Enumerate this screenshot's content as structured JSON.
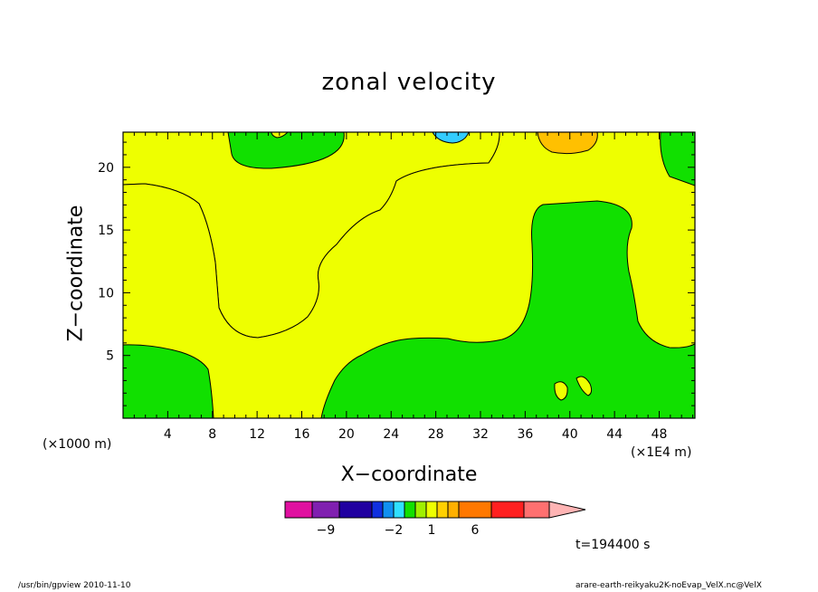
{
  "chart_data": {
    "type": "heatmap",
    "title": "zonal velocity",
    "xlabel": "X−coordinate",
    "ylabel": "Z−coordinate",
    "x_unit_left": "(×1000 m)",
    "x_unit_right": "(×1E4 m)",
    "xlim": [
      0,
      51.2
    ],
    "ylim": [
      0,
      22.8
    ],
    "x_ticks": [
      4,
      8,
      12,
      16,
      20,
      24,
      28,
      32,
      36,
      40,
      44,
      48
    ],
    "y_ticks": [
      5,
      10,
      15,
      20
    ],
    "fill_colors": {
      "green": "#11e000",
      "yellow": "#eeff00",
      "orange": "#ffc000",
      "cyan": "#33ccff"
    },
    "colorbar": {
      "colors": [
        "#e010a0",
        "#8020b0",
        "#2000a0",
        "#1030e0",
        "#1090f0",
        "#30e0ff",
        "#11e000",
        "#a0f000",
        "#eeff00",
        "#ffd000",
        "#ffb000",
        "#ff7800",
        "#ff2020",
        "#ff7070",
        "#ffb4b4"
      ],
      "labels": [
        {
          "value": "−9",
          "index": 1.5
        },
        {
          "value": "−2",
          "index": 5.0
        },
        {
          "value": "1",
          "index": 8.5
        },
        {
          "value": "6",
          "index": 11.5
        }
      ]
    },
    "time_label": "t=194400 s"
  },
  "footer": {
    "left": "/usr/bin/gpview   2010-11-10",
    "right": "arare-earth-reikyaku2K-noEvap_VelX.nc@VelX"
  }
}
